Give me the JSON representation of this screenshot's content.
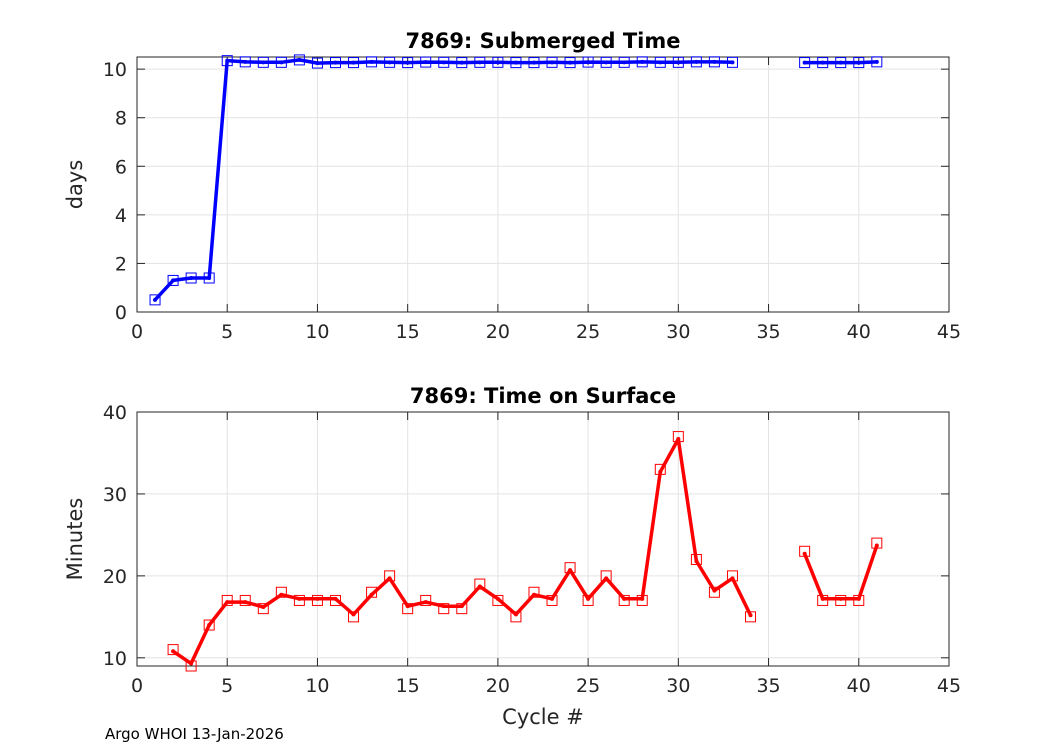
{
  "footer": "Argo WHOI 13-Jan-2026",
  "chart_data": [
    {
      "type": "line",
      "title": "7869: Submerged Time",
      "xlabel": "",
      "ylabel": "days",
      "xlim": [
        0,
        45
      ],
      "ylim": [
        0,
        10.5
      ],
      "xticks": [
        0,
        5,
        10,
        15,
        20,
        25,
        30,
        35,
        40,
        45
      ],
      "yticks": [
        0,
        2,
        4,
        6,
        8,
        10
      ],
      "grid": true,
      "color": "#0000ff",
      "series": [
        {
          "x": [
            1,
            2,
            3,
            4,
            5,
            6,
            7,
            8,
            9,
            10,
            11,
            12,
            13,
            14,
            15,
            16,
            17,
            18,
            19,
            20,
            21,
            22,
            23,
            24,
            25,
            26,
            27,
            28,
            29,
            30,
            31,
            32,
            33,
            null,
            37,
            38,
            39,
            40,
            41
          ],
          "values": [
            0.5,
            1.3,
            1.4,
            1.4,
            10.35,
            10.3,
            10.28,
            10.28,
            10.38,
            10.25,
            10.27,
            10.27,
            10.3,
            10.28,
            10.27,
            10.29,
            10.28,
            10.27,
            10.28,
            10.28,
            10.27,
            10.27,
            10.28,
            10.27,
            10.29,
            10.28,
            10.28,
            10.3,
            10.28,
            10.28,
            10.3,
            10.3,
            10.28,
            null,
            10.27,
            10.27,
            10.27,
            10.27,
            10.3
          ]
        }
      ]
    },
    {
      "type": "line",
      "title": "7869: Time on Surface",
      "xlabel": "Cycle #",
      "ylabel": "Minutes",
      "xlim": [
        0,
        45
      ],
      "ylim": [
        9,
        40
      ],
      "xticks": [
        0,
        5,
        10,
        15,
        20,
        25,
        30,
        35,
        40,
        45
      ],
      "yticks": [
        10,
        20,
        30,
        40
      ],
      "grid": true,
      "color": "#ff0000",
      "series": [
        {
          "x": [
            2,
            3,
            4,
            5,
            6,
            7,
            8,
            9,
            10,
            11,
            12,
            13,
            14,
            15,
            16,
            17,
            18,
            19,
            20,
            21,
            22,
            23,
            24,
            25,
            26,
            27,
            28,
            29,
            30,
            31,
            32,
            33,
            34,
            null,
            37,
            38,
            39,
            40,
            41
          ],
          "values": [
            11,
            9,
            14,
            17,
            17,
            16,
            18,
            17,
            17,
            17,
            15,
            18,
            20,
            16,
            17,
            16,
            16,
            19,
            17,
            15,
            18,
            17,
            21,
            17,
            20,
            17,
            17,
            33,
            37,
            22,
            18,
            20,
            15,
            null,
            23,
            17,
            17,
            17,
            24
          ],
          "line_values": [
            10.8,
            9.3,
            14,
            16.8,
            16.8,
            16.2,
            17.7,
            17.2,
            17.2,
            17.2,
            15.3,
            17.7,
            19.7,
            16.3,
            16.8,
            16.3,
            16.3,
            18.7,
            17.2,
            15.3,
            17.7,
            17.2,
            20.7,
            17.2,
            19.7,
            17.2,
            17.2,
            32.7,
            36.7,
            21.8,
            18.2,
            19.7,
            15.2,
            null,
            22.7,
            17.2,
            17.2,
            17.2,
            23.7
          ]
        }
      ]
    }
  ]
}
